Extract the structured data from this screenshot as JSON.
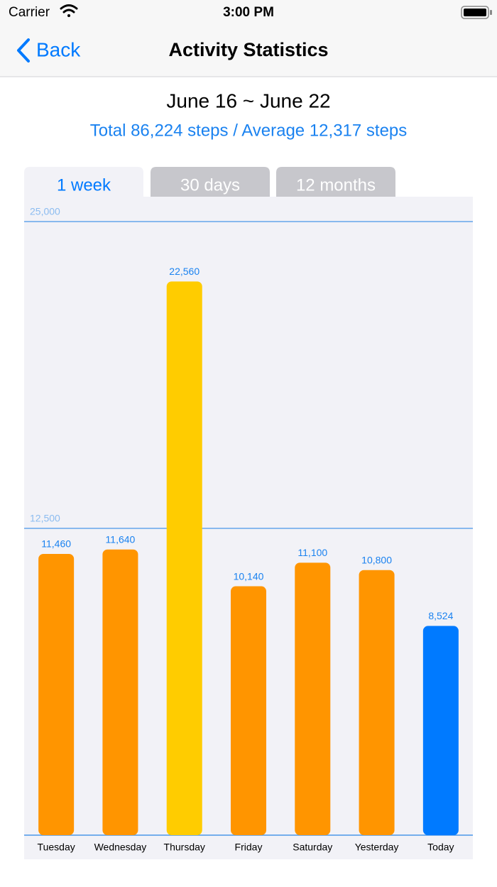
{
  "status_bar": {
    "carrier": "Carrier",
    "time": "3:00 PM"
  },
  "nav": {
    "back": "Back",
    "title": "Activity Statistics"
  },
  "header": {
    "date_range": "June 16 ~ June 22",
    "summary": "Total 86,224 steps / Average 12,317 steps"
  },
  "tabs": {
    "items": [
      "1 week",
      "30 days",
      "12 months"
    ],
    "selected": 0
  },
  "chart_data": {
    "type": "bar",
    "categories": [
      "Tuesday",
      "Wednesday",
      "Thursday",
      "Friday",
      "Saturday",
      "Yesterday",
      "Today"
    ],
    "values": [
      11460,
      11640,
      22560,
      10140,
      11100,
      10800,
      8524
    ],
    "value_labels": [
      "11,460",
      "11,640",
      "22,560",
      "10,140",
      "11,100",
      "10,800",
      "8,524"
    ],
    "colors": [
      "#ff9500",
      "#ff9500",
      "#ffcc00",
      "#ff9500",
      "#ff9500",
      "#ff9500",
      "#007aff"
    ],
    "ylim": [
      0,
      25000
    ],
    "yticks": [
      {
        "value": 12500,
        "label": "12,500"
      },
      {
        "value": 25000,
        "label": "25,000"
      }
    ],
    "grid": true
  }
}
